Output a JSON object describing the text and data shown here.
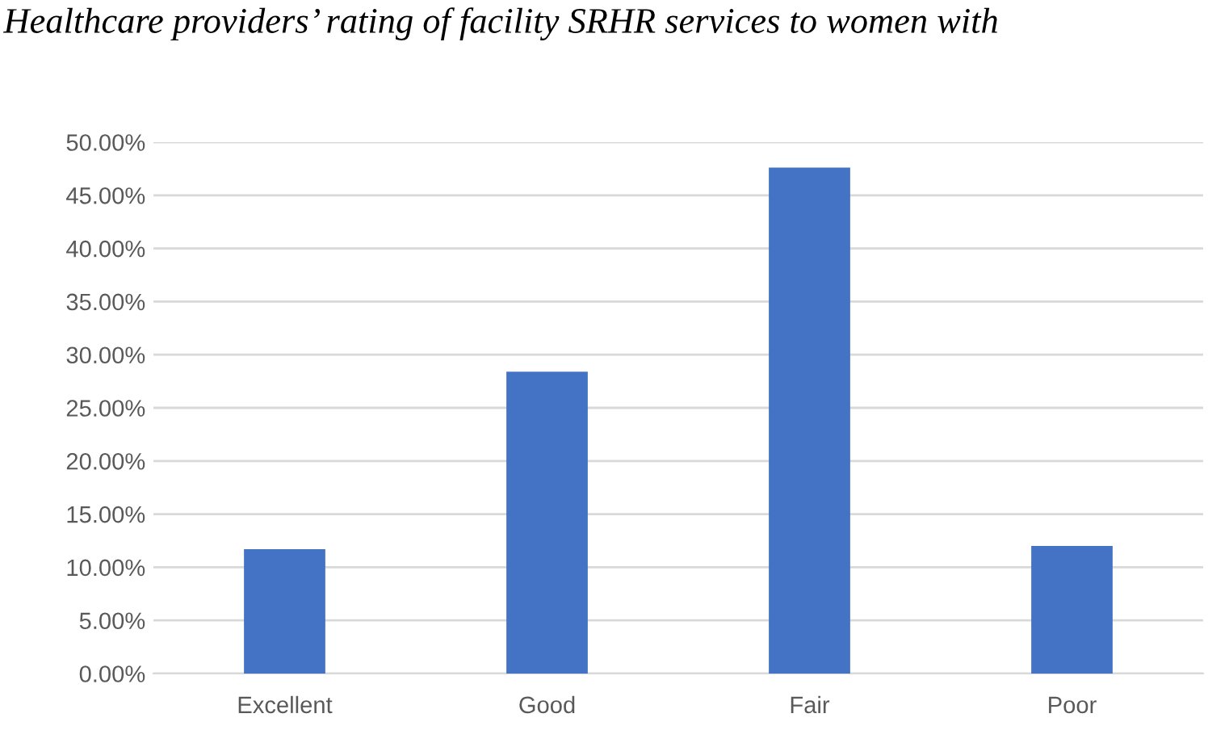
{
  "chart_data": {
    "type": "bar",
    "title": "Healthcare providers’ rating of facility SRHR services to women with",
    "categories": [
      "Excellent",
      "Good",
      "Fair",
      "Poor"
    ],
    "values": [
      11.7,
      28.4,
      47.6,
      12.0
    ],
    "color": "#4472c4",
    "ylim": [
      0,
      50
    ],
    "yticks": [
      {
        "value": 0,
        "label": "0.00%"
      },
      {
        "value": 5,
        "label": "5.00%"
      },
      {
        "value": 10,
        "label": "10.00%"
      },
      {
        "value": 15,
        "label": "15.00%"
      },
      {
        "value": 20,
        "label": "20.00%"
      },
      {
        "value": 25,
        "label": "25.00%"
      },
      {
        "value": 30,
        "label": "30.00%"
      },
      {
        "value": 35,
        "label": "35.00%"
      },
      {
        "value": 40,
        "label": "40.00%"
      },
      {
        "value": 45,
        "label": "45.00%"
      },
      {
        "value": 50,
        "label": "50.00%"
      }
    ],
    "grid": "y"
  }
}
